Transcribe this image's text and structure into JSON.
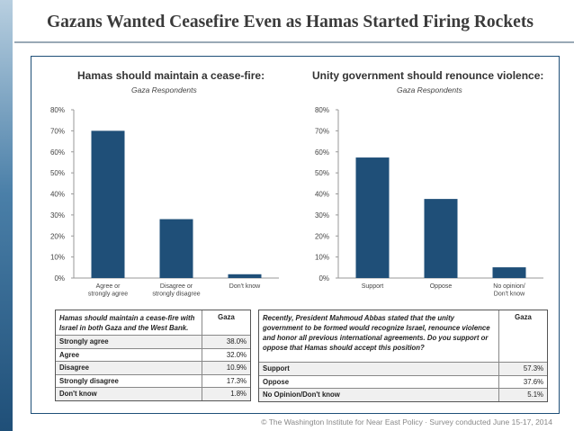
{
  "title": "Gazans Wanted Ceasefire Even as Hamas Started Firing Rockets",
  "footer": "© The Washington Institute for Near East Policy  ·  Survey conducted June 15-17, 2014",
  "colors": {
    "bar": "#1f4f78",
    "accent": "#1f4f78"
  },
  "chart_data": [
    {
      "type": "bar",
      "title": "Hamas should maintain a cease-fire:",
      "subtitle": "Gaza Respondents",
      "categories": [
        "Agree or strongly agree",
        "Disagree or strongly disagree",
        "Don't know"
      ],
      "category_lines": [
        [
          "Agree or",
          "strongly agree"
        ],
        [
          "Disagree or",
          "strongly disagree"
        ],
        [
          "Don't know"
        ]
      ],
      "values": [
        70,
        28,
        1.8
      ],
      "ylim": [
        0,
        80
      ],
      "yticks": [
        "0%",
        "10%",
        "20%",
        "30%",
        "40%",
        "50%",
        "60%",
        "70%",
        "80%"
      ],
      "grid": false
    },
    {
      "type": "bar",
      "title": "Unity government should renounce violence:",
      "subtitle": "Gaza Respondents",
      "categories": [
        "Support",
        "Oppose",
        "No opinion/ Don't know"
      ],
      "category_lines": [
        [
          "Support"
        ],
        [
          "Oppose"
        ],
        [
          "No opinion/",
          "Don't know"
        ]
      ],
      "values": [
        57.3,
        37.6,
        5.1
      ],
      "ylim": [
        0,
        80
      ],
      "yticks": [
        "0%",
        "10%",
        "20%",
        "30%",
        "40%",
        "50%",
        "60%",
        "70%",
        "80%"
      ],
      "grid": false
    }
  ],
  "table1": {
    "question": "Hamas should maintain a cease-fire with Israel in both Gaza and the West Bank.",
    "column": "Gaza",
    "rows": [
      {
        "label": "Strongly agree",
        "value": "38.0%"
      },
      {
        "label": "Agree",
        "value": "32.0%"
      },
      {
        "label": "Disagree",
        "value": "10.9%"
      },
      {
        "label": "Strongly disagree",
        "value": "17.3%"
      },
      {
        "label": "Don't know",
        "value": "1.8%"
      }
    ]
  },
  "table2": {
    "question": "Recently, President Mahmoud Abbas stated that the unity government to be formed would recognize Israel, renounce violence and honor all previous international agreements. Do you support or oppose that Hamas should accept this position?",
    "column": "Gaza",
    "rows": [
      {
        "label": "Support",
        "value": "57.3%"
      },
      {
        "label": "Oppose",
        "value": "37.6%"
      },
      {
        "label": "No Opinion/Don't know",
        "value": "5.1%"
      }
    ]
  }
}
